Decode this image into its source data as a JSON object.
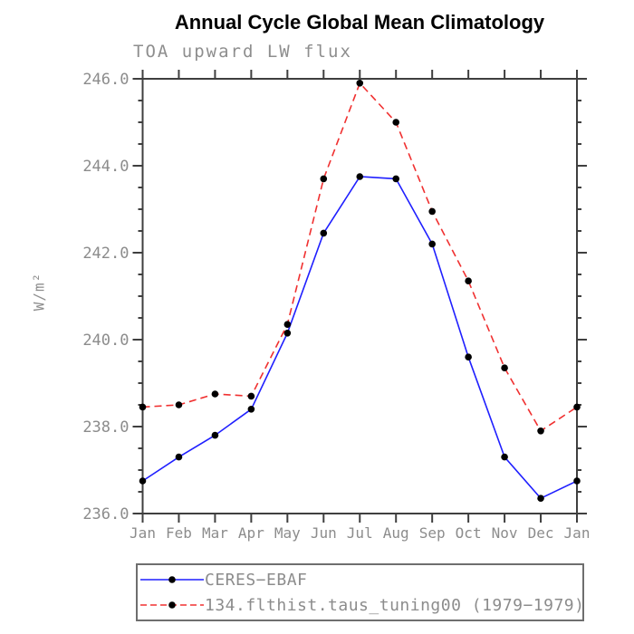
{
  "chart_data": {
    "type": "line",
    "title": "Annual Cycle Global Mean Climatology",
    "subtitle": "TOA upward LW flux",
    "xlabel": "",
    "ylabel": "W/m²",
    "categories": [
      "Jan",
      "Feb",
      "Mar",
      "Apr",
      "May",
      "Jun",
      "Jul",
      "Aug",
      "Sep",
      "Oct",
      "Nov",
      "Dec",
      "Jan"
    ],
    "ylim": [
      236.0,
      246.0
    ],
    "ytick_labels": [
      "236.0",
      "238.0",
      "240.0",
      "242.0",
      "244.0",
      "246.0"
    ],
    "ytick_minor_step": 0.5,
    "grid": false,
    "legend_position": "bottom-left-box",
    "frame_color": "#3f3f3f",
    "text_color": "#8c8c8c",
    "title_color": "#000000",
    "marker_color": "#000000",
    "series": [
      {
        "name": "CERES−EBAF",
        "color": "#1f1fff",
        "line_style": "solid",
        "marker": "filled-circle",
        "values": [
          236.75,
          237.3,
          237.8,
          238.4,
          240.15,
          242.45,
          243.75,
          243.7,
          242.2,
          239.6,
          237.3,
          236.35,
          236.75
        ]
      },
      {
        "name": "134.flthist.taus_tuning00 (1979−1979)",
        "color": "#f03030",
        "line_style": "dashed",
        "marker": "filled-circle",
        "values": [
          238.45,
          238.5,
          238.75,
          238.7,
          240.35,
          243.7,
          245.9,
          245.0,
          242.95,
          241.35,
          239.35,
          237.9,
          238.45
        ]
      }
    ]
  }
}
